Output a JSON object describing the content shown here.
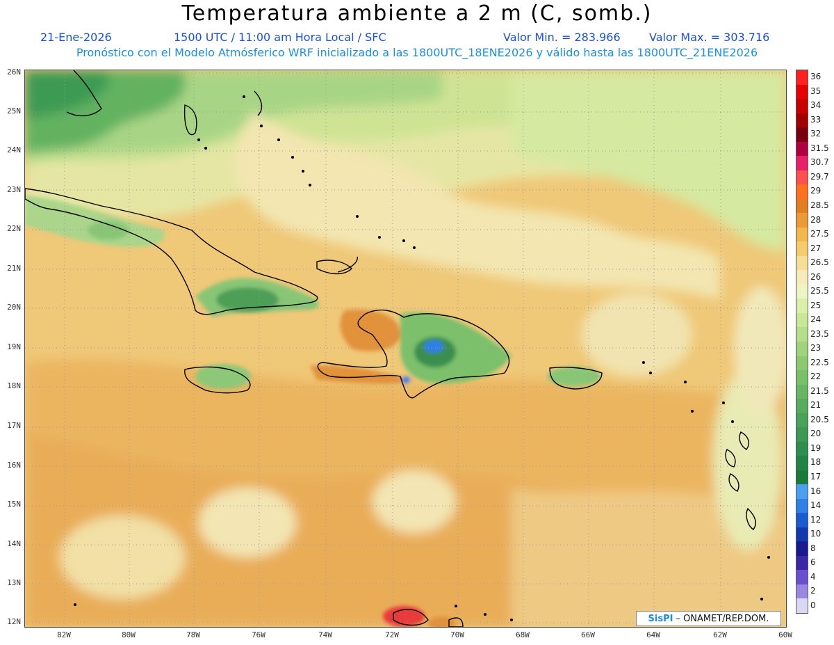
{
  "header": {
    "title": "Temperatura ambiente a 2 m (C, somb.)",
    "date": "21-Ene-2026",
    "time_info": "1500 UTC / 11:00 am Hora Local / SFC",
    "min_label": "Valor Min. = 283.966",
    "max_label": "Valor Max. = 303.716",
    "forecast_info": "Pronóstico con el Modelo Atmósferico WRF inicializado a las 1800UTC_18ENE2026 y válido hasta las  1800UTC_21ENE2026"
  },
  "map": {
    "lat_labels": [
      "26N",
      "25N",
      "24N",
      "23N",
      "22N",
      "21N",
      "20N",
      "19N",
      "18N",
      "17N",
      "16N",
      "15N",
      "14N",
      "13N",
      "12N"
    ],
    "lon_labels": [
      "82W",
      "80W",
      "78W",
      "76W",
      "74W",
      "72W",
      "70W",
      "68W",
      "66W",
      "64W",
      "62W",
      "60W"
    ]
  },
  "colorbar": {
    "labels": [
      "36",
      "35",
      "34",
      "33",
      "32",
      "31.5",
      "30.7",
      "29.7",
      "29",
      "28.5",
      "28",
      "27.5",
      "27",
      "26.5",
      "26",
      "25.5",
      "25",
      "24",
      "23.5",
      "23",
      "22.5",
      "22",
      "21.5",
      "21",
      "20.5",
      "20",
      "19",
      "18",
      "17",
      "16",
      "14",
      "12",
      "10",
      "8",
      "6",
      "4",
      "2",
      "0"
    ],
    "colors": [
      "#ff2020",
      "#e60000",
      "#c80000",
      "#a00000",
      "#7a0010",
      "#b00040",
      "#e8206a",
      "#ff5050",
      "#ff7020",
      "#e08020",
      "#ec9a38",
      "#f2b850",
      "#f4cc6c",
      "#f6de96",
      "#f7ebbc",
      "#eef5c2",
      "#dcefa8",
      "#c8e898",
      "#b4de88",
      "#a0d47c",
      "#8cca72",
      "#78c06a",
      "#68b664",
      "#58ac5e",
      "#4aa258",
      "#3c9852",
      "#2e8e4c",
      "#1f8444",
      "#1a7a3c",
      "#4aa0f0",
      "#2f80e8",
      "#1a5cd0",
      "#123ab0",
      "#1a1a90",
      "#3a28a8",
      "#6a50d0",
      "#9a88e0",
      "#d8d8f4"
    ]
  },
  "credit": {
    "logo_text": "SisPI",
    "text": "– ONAMET/REP.DOM."
  }
}
